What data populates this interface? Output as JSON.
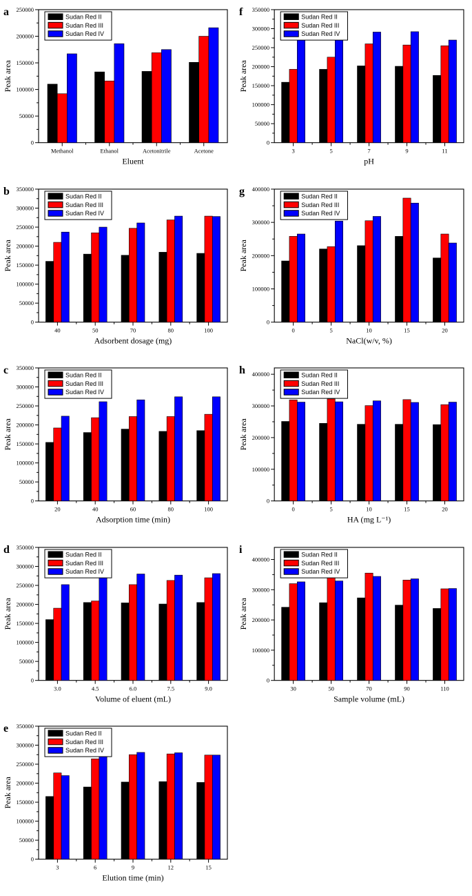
{
  "figure": {
    "ylabel": "Peak area",
    "series_names": [
      "Sudan Red II",
      "Sudan Red III",
      "Sudan Red IV"
    ],
    "series_colors": [
      "#000000",
      "#ff0000",
      "#0000ff"
    ]
  },
  "chart_data": [
    {
      "type": "bar",
      "letter": "a",
      "xlabel": "Eluent",
      "ylabel": "Peak area",
      "ylim": [
        0,
        250000
      ],
      "ytick_step": 50000,
      "legend_position": "top-left",
      "grid": false,
      "categories": [
        "Methanol",
        "Ethanol",
        "Acetonitrile",
        "Acetone"
      ],
      "series": [
        {
          "name": "Sudan Red II",
          "color": "#000000",
          "values": [
            110000,
            133000,
            134000,
            151000
          ]
        },
        {
          "name": "Sudan Red III",
          "color": "#ff0000",
          "values": [
            92000,
            116000,
            169000,
            200000
          ]
        },
        {
          "name": "Sudan Red IV",
          "color": "#0000ff",
          "values": [
            167000,
            186000,
            175000,
            216000
          ]
        }
      ]
    },
    {
      "type": "bar",
      "letter": "b",
      "xlabel": "Adsorbent dosage (mg)",
      "ylabel": "Peak area",
      "ylim": [
        0,
        350000
      ],
      "ytick_step": 50000,
      "legend_position": "top-left",
      "grid": false,
      "categories": [
        "40",
        "50",
        "70",
        "80",
        "100"
      ],
      "series": [
        {
          "name": "Sudan Red II",
          "color": "#000000",
          "values": [
            160000,
            179000,
            176000,
            184000,
            181000
          ]
        },
        {
          "name": "Sudan Red III",
          "color": "#ff0000",
          "values": [
            210000,
            235000,
            247000,
            269000,
            279000
          ]
        },
        {
          "name": "Sudan Red IV",
          "color": "#0000ff",
          "values": [
            237000,
            250000,
            261000,
            279000,
            278000
          ]
        }
      ]
    },
    {
      "type": "bar",
      "letter": "c",
      "xlabel": "Adsorption time (min)",
      "ylabel": "Peak area",
      "ylim": [
        0,
        350000
      ],
      "ytick_step": 50000,
      "legend_position": "top-left",
      "grid": false,
      "categories": [
        "20",
        "40",
        "60",
        "80",
        "100"
      ],
      "series": [
        {
          "name": "Sudan Red II",
          "color": "#000000",
          "values": [
            154000,
            180000,
            189000,
            183000,
            185000
          ]
        },
        {
          "name": "Sudan Red III",
          "color": "#ff0000",
          "values": [
            192000,
            219000,
            222000,
            222000,
            228000
          ]
        },
        {
          "name": "Sudan Red IV",
          "color": "#0000ff",
          "values": [
            223000,
            261000,
            266000,
            274000,
            274000
          ]
        }
      ]
    },
    {
      "type": "bar",
      "letter": "d",
      "xlabel": "Volume of eluent (mL)",
      "ylabel": "Peak area",
      "ylim": [
        0,
        350000
      ],
      "ytick_step": 50000,
      "legend_position": "top-left",
      "grid": false,
      "categories": [
        "3.0",
        "4.5",
        "6.0",
        "7.5",
        "9.0"
      ],
      "series": [
        {
          "name": "Sudan Red II",
          "color": "#000000",
          "values": [
            160000,
            205000,
            204000,
            201000,
            205000
          ]
        },
        {
          "name": "Sudan Red III",
          "color": "#ff0000",
          "values": [
            190000,
            209000,
            252000,
            263000,
            270000
          ]
        },
        {
          "name": "Sudan Red IV",
          "color": "#0000ff",
          "values": [
            252000,
            274000,
            280000,
            277000,
            281000
          ]
        }
      ]
    },
    {
      "type": "bar",
      "letter": "e",
      "xlabel": "Elution time (min)",
      "ylabel": "Peak area",
      "ylim": [
        0,
        350000
      ],
      "ytick_step": 50000,
      "legend_position": "top-left",
      "grid": false,
      "categories": [
        "3",
        "6",
        "9",
        "12",
        "15"
      ],
      "series": [
        {
          "name": "Sudan Red II",
          "color": "#000000",
          "values": [
            165000,
            190000,
            203000,
            204000,
            202000
          ]
        },
        {
          "name": "Sudan Red III",
          "color": "#ff0000",
          "values": [
            227000,
            264000,
            275000,
            277000,
            274000
          ]
        },
        {
          "name": "Sudan Red IV",
          "color": "#0000ff",
          "values": [
            220000,
            272000,
            281000,
            280000,
            274000
          ]
        }
      ]
    },
    {
      "type": "bar",
      "letter": "f",
      "xlabel": "pH",
      "ylabel": "Peak area",
      "ylim": [
        0,
        350000
      ],
      "ytick_step": 50000,
      "legend_position": "top-left",
      "grid": false,
      "categories": [
        "3",
        "5",
        "7",
        "9",
        "11"
      ],
      "series": [
        {
          "name": "Sudan Red II",
          "color": "#000000",
          "values": [
            159000,
            193000,
            202000,
            201000,
            177000
          ]
        },
        {
          "name": "Sudan Red III",
          "color": "#ff0000",
          "values": [
            193000,
            225000,
            260000,
            257000,
            255000
          ]
        },
        {
          "name": "Sudan Red IV",
          "color": "#0000ff",
          "values": [
            273000,
            274000,
            291000,
            292000,
            270000
          ]
        }
      ]
    },
    {
      "type": "bar",
      "letter": "g",
      "xlabel": "NaCl(w/v, %)",
      "ylabel": "Peak area",
      "ylim": [
        0,
        400000
      ],
      "ytick_step": 100000,
      "legend_position": "top-left",
      "grid": false,
      "categories": [
        "0",
        "5",
        "10",
        "15",
        "20"
      ],
      "series": [
        {
          "name": "Sudan Red II",
          "color": "#000000",
          "values": [
            184000,
            220000,
            230000,
            258000,
            193000
          ]
        },
        {
          "name": "Sudan Red III",
          "color": "#ff0000",
          "values": [
            258000,
            227000,
            305000,
            373000,
            265000
          ]
        },
        {
          "name": "Sudan Red IV",
          "color": "#0000ff",
          "values": [
            265000,
            304000,
            318000,
            358000,
            238000
          ]
        }
      ]
    },
    {
      "type": "bar",
      "letter": "h",
      "xlabel": "HA (mg L⁻¹)",
      "ylabel": "Peak area",
      "ylim": [
        0,
        420000
      ],
      "ytick_step": 100000,
      "legend_position": "top-left",
      "grid": false,
      "categories": [
        "0",
        "5",
        "10",
        "15",
        "20"
      ],
      "series": [
        {
          "name": "Sudan Red II",
          "color": "#000000",
          "values": [
            251000,
            245000,
            242000,
            242000,
            241000
          ]
        },
        {
          "name": "Sudan Red III",
          "color": "#ff0000",
          "values": [
            319000,
            322000,
            301000,
            320000,
            304000
          ]
        },
        {
          "name": "Sudan Red IV",
          "color": "#0000ff",
          "values": [
            312000,
            313000,
            316000,
            311000,
            312000
          ]
        }
      ]
    },
    {
      "type": "bar",
      "letter": "i",
      "xlabel": "Sample volume (mL)",
      "ylabel": "Peak area",
      "ylim": [
        0,
        440000
      ],
      "ytick_step": 100000,
      "legend_position": "top-left",
      "grid": false,
      "categories": [
        "30",
        "50",
        "70",
        "90",
        "110"
      ],
      "series": [
        {
          "name": "Sudan Red II",
          "color": "#000000",
          "values": [
            242000,
            257000,
            273000,
            249000,
            238000
          ]
        },
        {
          "name": "Sudan Red III",
          "color": "#ff0000",
          "values": [
            320000,
            351000,
            355000,
            332000,
            303000
          ]
        },
        {
          "name": "Sudan Red IV",
          "color": "#0000ff",
          "values": [
            326000,
            329000,
            344000,
            336000,
            304000
          ]
        }
      ]
    }
  ]
}
